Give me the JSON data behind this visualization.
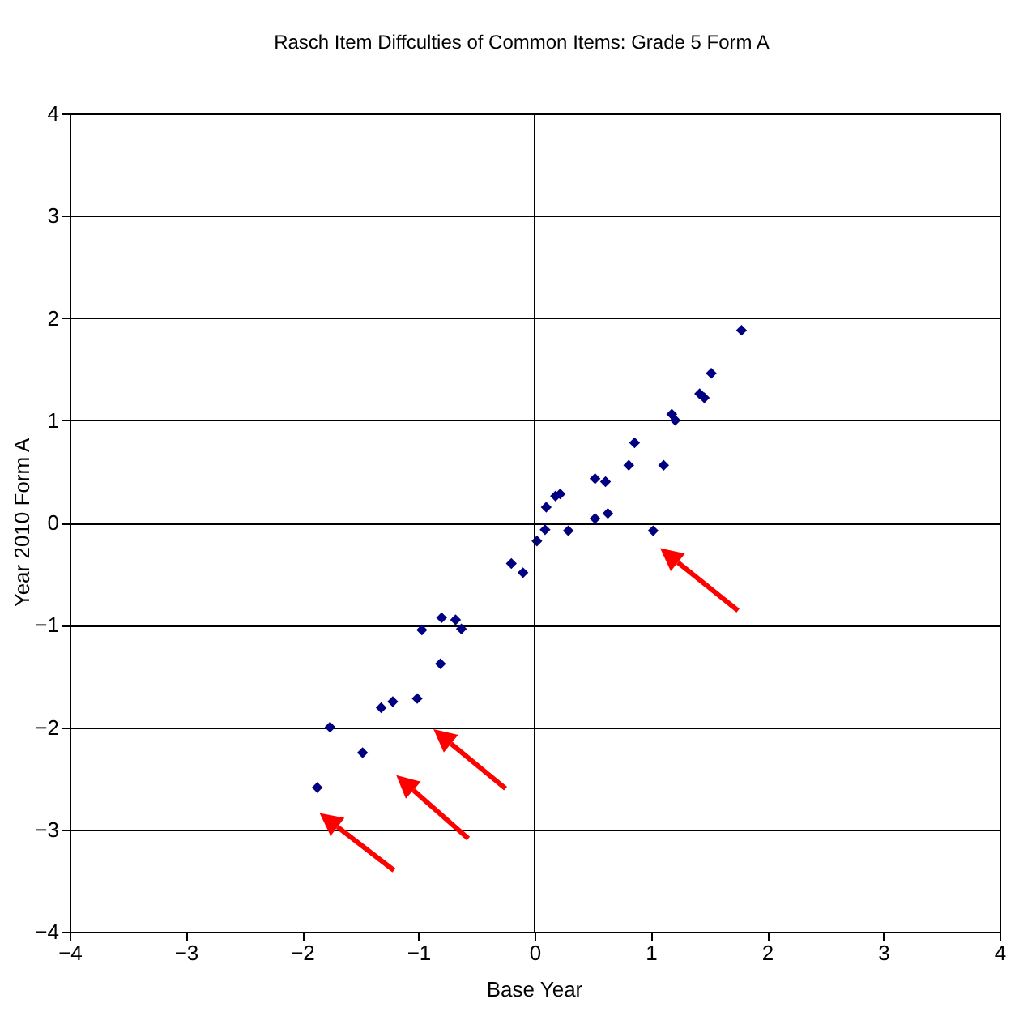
{
  "chart_data": {
    "type": "scatter",
    "title": "Rasch Item Diffculties of Common Items: Grade 5 Form A",
    "xlabel": "Base Year",
    "ylabel": "Year 2010 Form A",
    "x": [
      -0.2,
      -0.1,
      -0.97,
      -0.8,
      -0.68,
      -0.63,
      -0.81,
      -1.01,
      -1.22,
      -1.32,
      -1.76,
      -1.48,
      -1.87,
      0.02,
      0.09,
      0.1,
      0.18,
      0.22,
      0.29,
      0.52,
      0.61,
      0.52,
      0.63,
      0.81,
      0.86,
      1.11,
      1.02,
      1.18,
      1.21,
      1.42,
      1.46,
      1.52,
      1.78
    ],
    "series": [
      {
        "color": "#000080",
        "values": [
          -0.4,
          -0.49,
          -1.05,
          -0.93,
          -0.95,
          -1.04,
          -1.38,
          -1.72,
          -1.75,
          -1.81,
          -2.0,
          -2.25,
          -2.59,
          -0.18,
          -0.07,
          0.15,
          0.26,
          0.28,
          -0.08,
          0.43,
          0.4,
          0.04,
          0.09,
          0.56,
          0.78,
          0.56,
          -0.08,
          1.06,
          1.0,
          1.26,
          1.22,
          1.46,
          1.88
        ]
      }
    ],
    "xlim": [
      -4,
      4
    ],
    "ylim": [
      -4,
      4
    ],
    "xticks": [
      -4,
      -3,
      -2,
      -1,
      0,
      1,
      2,
      3,
      4
    ],
    "yticks": [
      -4,
      -3,
      -2,
      -1,
      0,
      1,
      2,
      3,
      4
    ],
    "grid": "y",
    "marker": "diamond",
    "ref_lines": [
      {
        "axis": "x",
        "value": 0
      }
    ]
  }
}
